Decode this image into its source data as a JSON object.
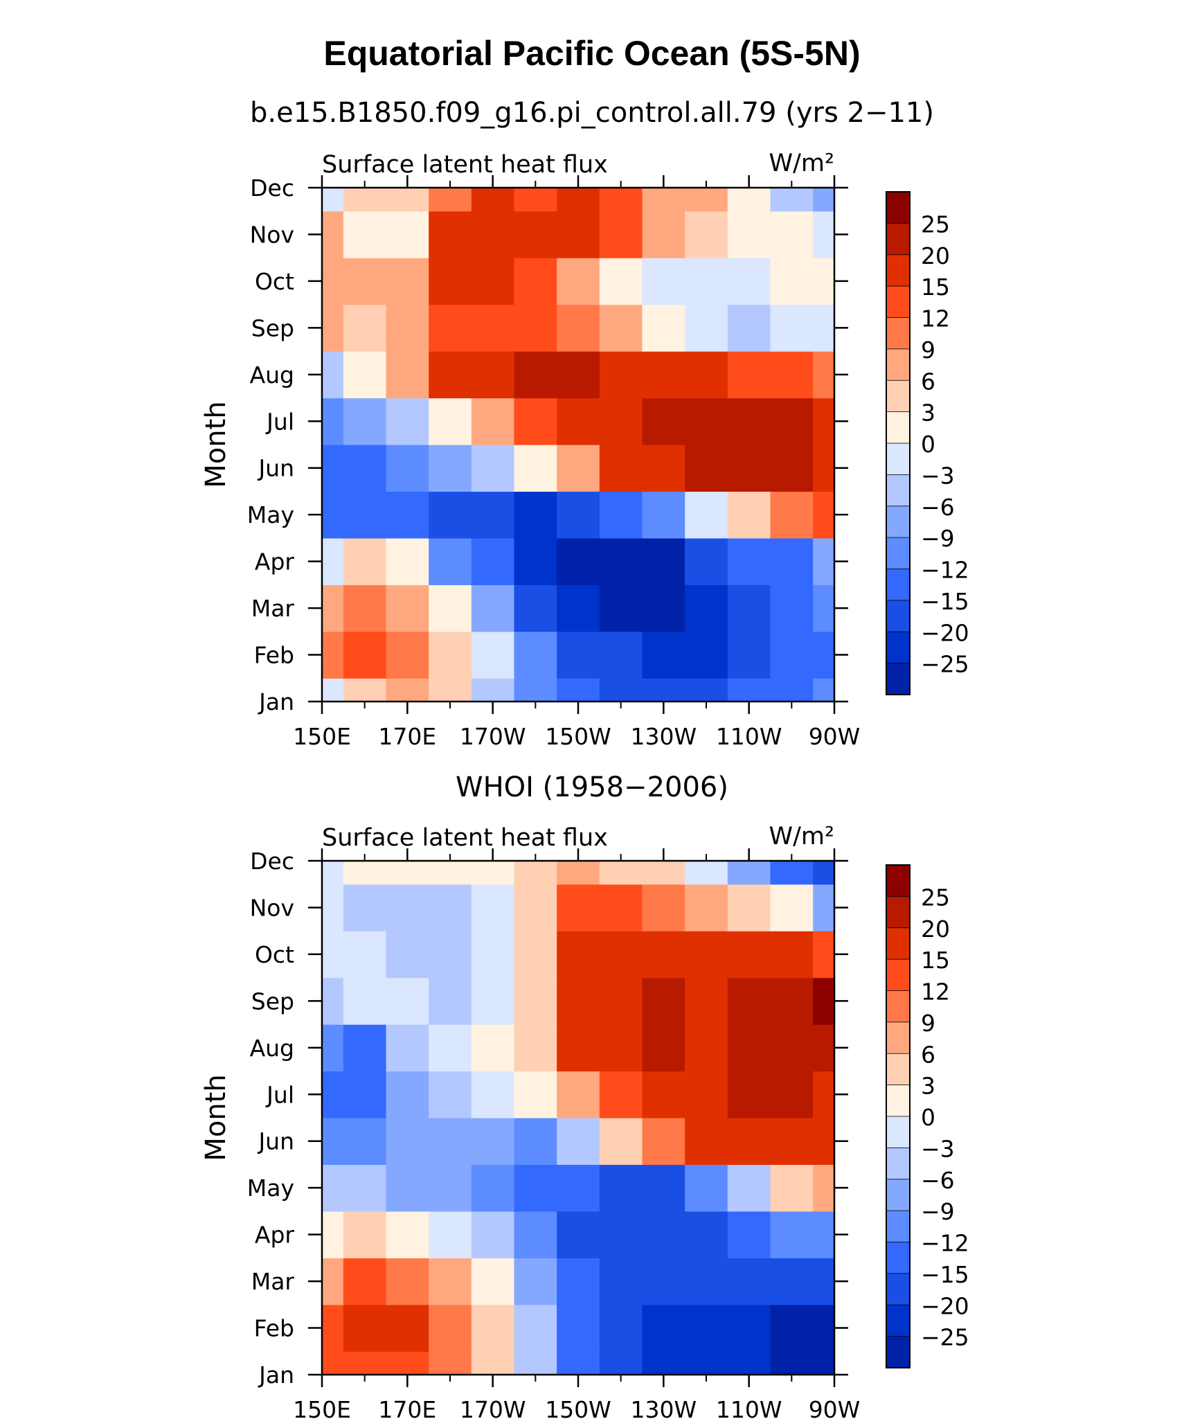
{
  "title": "Equatorial Pacific Ocean (5S-5N)",
  "chart_data": [
    {
      "type": "heatmap",
      "panel_title": "b.e15.B1850.f09_g16.pi_control.all.79 (yrs 2−11)",
      "left_label": "Surface latent heat flux",
      "units": "W/m²",
      "ylabel": "Month",
      "xticks": [
        "150E",
        "170E",
        "170W",
        "150W",
        "130W",
        "110W",
        "90W"
      ],
      "yticks": [
        "Jan",
        "Feb",
        "Mar",
        "Apr",
        "May",
        "Jun",
        "Jul",
        "Aug",
        "Sep",
        "Oct",
        "Nov",
        "Dec"
      ],
      "x": [
        150,
        160,
        170,
        180,
        190,
        200,
        210,
        220,
        230,
        240,
        250,
        260,
        270
      ],
      "z": [
        [
          -3,
          4,
          8,
          3,
          -6,
          -12,
          -15,
          -18,
          -18,
          -18,
          -15,
          -15,
          -12
        ],
        [
          10,
          12,
          10,
          4,
          -3,
          -12,
          -18,
          -20,
          -22,
          -22,
          -18,
          -15,
          -15
        ],
        [
          6,
          9,
          6,
          0,
          -9,
          -18,
          -25,
          -27,
          -27,
          -24,
          -18,
          -15,
          -12
        ],
        [
          -3,
          3,
          0,
          -10,
          -15,
          -24,
          -27,
          -28,
          -26,
          -20,
          -15,
          -14,
          -9
        ],
        [
          -15,
          -15,
          -15,
          -18,
          -20,
          -22,
          -20,
          -15,
          -10,
          -3,
          5,
          10,
          12
        ],
        [
          -15,
          -15,
          -12,
          -9,
          -6,
          0,
          8,
          15,
          18,
          20,
          22,
          20,
          16
        ],
        [
          -12,
          -9,
          -6,
          0,
          6,
          12,
          15,
          18,
          20,
          22,
          20,
          20,
          18
        ],
        [
          -6,
          0,
          8,
          15,
          18,
          20,
          20,
          18,
          18,
          16,
          14,
          12,
          10
        ],
        [
          6,
          3,
          6,
          12,
          13,
          12,
          10,
          6,
          0,
          -3,
          -6,
          -3,
          -1
        ],
        [
          8,
          6,
          8,
          15,
          15,
          12,
          6,
          0,
          -2,
          -3,
          -3,
          0,
          1
        ],
        [
          6,
          0,
          2,
          15,
          18,
          16,
          15,
          12,
          6,
          3,
          0,
          0,
          -3
        ],
        [
          -3,
          3,
          3,
          9,
          15,
          12,
          15,
          12,
          6,
          6,
          0,
          -6,
          -9
        ]
      ],
      "levels": [
        -25,
        -20,
        -15,
        -12,
        -9,
        -6,
        -3,
        0,
        3,
        6,
        9,
        12,
        15,
        20,
        25
      ],
      "colorbar_labels": [
        "25",
        "20",
        "15",
        "12",
        "9",
        "6",
        "3",
        "0",
        "−3",
        "−6",
        "−9",
        "−12",
        "−15",
        "−20",
        "−25"
      ]
    },
    {
      "type": "heatmap",
      "panel_title": "WHOI (1958−2006)",
      "left_label": "Surface latent heat flux",
      "units": "W/m²",
      "ylabel": "Month",
      "xticks": [
        "150E",
        "170E",
        "170W",
        "150W",
        "130W",
        "110W",
        "90W"
      ],
      "yticks": [
        "Jan",
        "Feb",
        "Mar",
        "Apr",
        "May",
        "Jun",
        "Jul",
        "Aug",
        "Sep",
        "Oct",
        "Nov",
        "Dec"
      ],
      "x": [
        150,
        160,
        170,
        180,
        190,
        200,
        210,
        220,
        230,
        240,
        250,
        260,
        270
      ],
      "z": [
        [
          12,
          14,
          12,
          9,
          3,
          -6,
          -15,
          -20,
          -22,
          -24,
          -25,
          -26,
          -28
        ],
        [
          14,
          16,
          15,
          9,
          4,
          -6,
          -15,
          -20,
          -22,
          -24,
          -25,
          -26,
          -27
        ],
        [
          8,
          12,
          9,
          6,
          0,
          -8,
          -15,
          -18,
          -20,
          -20,
          -18,
          -18,
          -20
        ],
        [
          2,
          4,
          0,
          -3,
          -6,
          -12,
          -16,
          -18,
          -18,
          -18,
          -15,
          -12,
          -12
        ],
        [
          -6,
          -6,
          -8,
          -9,
          -12,
          -14,
          -15,
          -16,
          -18,
          -12,
          -6,
          3,
          6
        ],
        [
          -12,
          -12,
          -8,
          -8,
          -9,
          -12,
          -6,
          3,
          9,
          15,
          18,
          18,
          18
        ],
        [
          -15,
          -15,
          -9,
          -6,
          -3,
          0,
          6,
          12,
          18,
          18,
          20,
          20,
          18
        ],
        [
          -12,
          -14,
          -6,
          -3,
          0,
          3,
          15,
          18,
          20,
          18,
          20,
          22,
          22
        ],
        [
          -6,
          -3,
          -3,
          -6,
          -2,
          3,
          16,
          18,
          20,
          18,
          20,
          22,
          26
        ],
        [
          -3,
          -2,
          -4,
          -4,
          -1,
          3,
          15,
          18,
          17,
          18,
          18,
          16,
          14
        ],
        [
          -3,
          -6,
          -6,
          -4,
          -3,
          3,
          12,
          12,
          10,
          6,
          3,
          0,
          -9
        ],
        [
          -3,
          1,
          0,
          1,
          1,
          3,
          6,
          4,
          3,
          -3,
          -9,
          -15,
          -20
        ]
      ],
      "levels": [
        -25,
        -20,
        -15,
        -12,
        -9,
        -6,
        -3,
        0,
        3,
        6,
        9,
        12,
        15,
        20,
        25
      ],
      "colorbar_labels": [
        "25",
        "20",
        "15",
        "12",
        "9",
        "6",
        "3",
        "0",
        "−3",
        "−6",
        "−9",
        "−12",
        "−15",
        "−20",
        "−25"
      ]
    }
  ],
  "colors": {
    "scale": [
      "#00008c",
      "#0022a8",
      "#0033cc",
      "#1a4fe6",
      "#3369ff",
      "#5c8cff",
      "#85a8ff",
      "#b3c8ff",
      "#dbe6ff",
      "#fff2e0",
      "#ffd0b3",
      "#ffa880",
      "#ff7a48",
      "#ff4c1a",
      "#e03000",
      "#b81a00",
      "#8c0000"
    ]
  }
}
